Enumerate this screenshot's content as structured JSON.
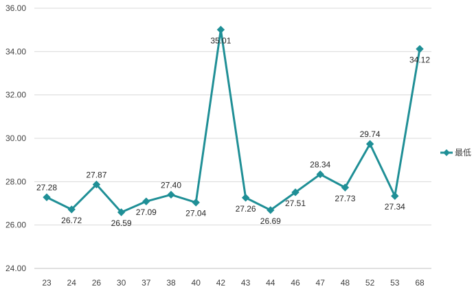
{
  "chart_data": {
    "type": "line",
    "categories": [
      "23",
      "24",
      "26",
      "30",
      "37",
      "38",
      "40",
      "42",
      "43",
      "44",
      "46",
      "47",
      "48",
      "52",
      "53",
      "68"
    ],
    "series": [
      {
        "name": "最低",
        "values": [
          27.28,
          26.72,
          27.87,
          26.59,
          27.09,
          27.4,
          27.04,
          35.01,
          27.26,
          26.69,
          27.51,
          28.34,
          27.73,
          29.74,
          27.34,
          34.12
        ],
        "labels": [
          "27.28",
          "26.72",
          "27.87",
          "26.59",
          "27.09",
          "27.40",
          "27.04",
          "35.01",
          "27.26",
          "26.69",
          "27.51",
          "28.34",
          "27.73",
          "29.74",
          "27.34",
          "34.12"
        ]
      }
    ],
    "ylim": [
      24,
      36
    ],
    "yticks": [
      "24.00",
      "26.00",
      "28.00",
      "30.00",
      "32.00",
      "34.00",
      "36.00"
    ],
    "grid": true,
    "legend_position": "right",
    "colors": {
      "series": "#1f8f96",
      "grid": "#d9d9d9",
      "axis": "#bfbfbf"
    }
  }
}
